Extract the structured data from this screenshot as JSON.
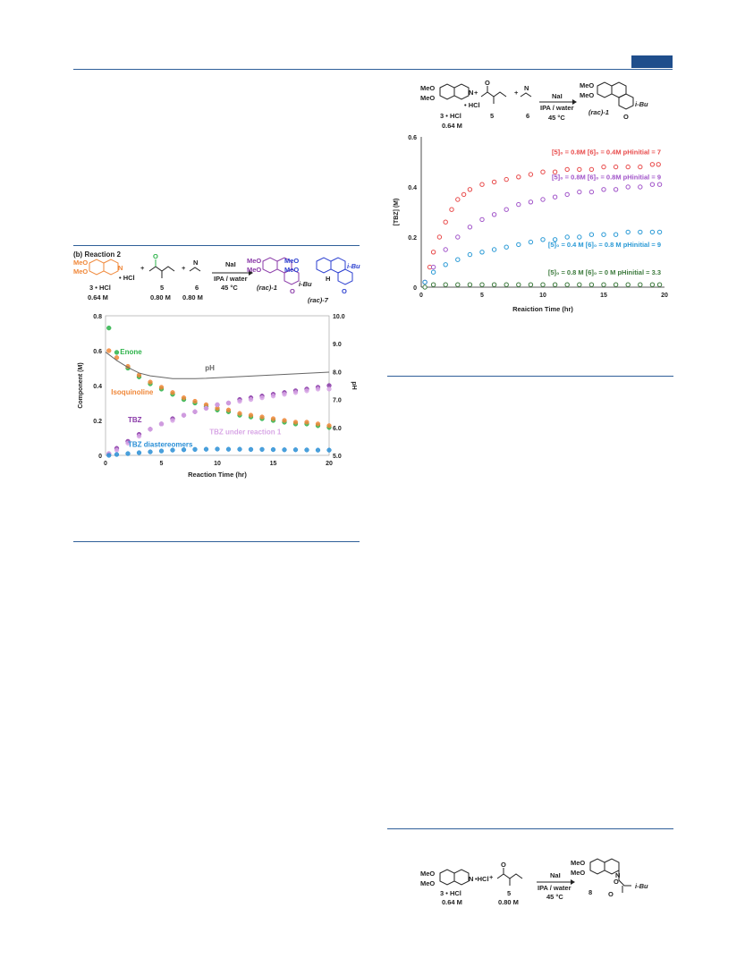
{
  "header": {
    "accent_color": "#1f4e8c"
  },
  "left_figure": {
    "title": "(b) Reaction 2",
    "scheme": {
      "reactant1_label": "3 • HCl",
      "reactant1_conc": "0.64 M",
      "hcl": "• HCl",
      "reactant2_label": "5",
      "reactant2_conc": "0.80 M",
      "reactant3_label": "6",
      "reactant3_conc": "0.80 M",
      "reagent": "NaI",
      "solvent": "IPA / water",
      "temp": "45 °C",
      "product1": "(rac)-1",
      "product2": "(rac)-7",
      "meo": "MeO",
      "ibu": "i-Bu",
      "h": "H",
      "o": "O",
      "n": "N"
    }
  },
  "chart_data": [
    {
      "type": "scatter",
      "xlabel": "Reaction Time (hr)",
      "ylabel": "Component (M)",
      "y2label": "pH",
      "xlim": [
        0,
        20
      ],
      "ylim": [
        0,
        0.8
      ],
      "y2lim": [
        5.0,
        10.0
      ],
      "xticks": [
        "0",
        "5",
        "10",
        "15",
        "20"
      ],
      "yticks": [
        "0",
        "0.2",
        "0.4",
        "0.6",
        "0.8"
      ],
      "y2ticks": [
        "5.0",
        "6.0",
        "7.0",
        "8.0",
        "9.0",
        "10.0"
      ],
      "series": [
        {
          "name": "Enone",
          "color": "#2db34a",
          "x": [
            0.3,
            1,
            2,
            3,
            4,
            5,
            6,
            7,
            8,
            9,
            10,
            11,
            12,
            13,
            14,
            15,
            16,
            17,
            18,
            19,
            20
          ],
          "y": [
            0.73,
            0.59,
            0.5,
            0.45,
            0.41,
            0.38,
            0.35,
            0.32,
            0.3,
            0.28,
            0.26,
            0.25,
            0.23,
            0.22,
            0.21,
            0.2,
            0.19,
            0.18,
            0.18,
            0.17,
            0.16
          ]
        },
        {
          "name": "Isoquinoline",
          "color": "#f0883a",
          "x": [
            0.3,
            1,
            2,
            3,
            4,
            5,
            6,
            7,
            8,
            9,
            10,
            11,
            12,
            13,
            14,
            15,
            16,
            17,
            18,
            19,
            20
          ],
          "y": [
            0.6,
            0.56,
            0.51,
            0.46,
            0.42,
            0.39,
            0.36,
            0.33,
            0.31,
            0.29,
            0.27,
            0.26,
            0.24,
            0.23,
            0.22,
            0.21,
            0.2,
            0.19,
            0.19,
            0.18,
            0.17
          ]
        },
        {
          "name": "TBZ",
          "color": "#8a3aa8",
          "x": [
            0.3,
            1,
            2,
            3,
            4,
            5,
            6,
            7,
            8,
            9,
            10,
            11,
            12,
            13,
            14,
            15,
            16,
            17,
            18,
            19,
            20
          ],
          "y": [
            0.01,
            0.04,
            0.08,
            0.12,
            0.15,
            0.18,
            0.21,
            0.23,
            0.25,
            0.27,
            0.29,
            0.3,
            0.32,
            0.33,
            0.34,
            0.35,
            0.36,
            0.37,
            0.38,
            0.39,
            0.4
          ]
        },
        {
          "name": "TBZ under reaction 1",
          "color": "#d8a7e6",
          "x": [
            0.3,
            1,
            2,
            3,
            4,
            5,
            6,
            7,
            8,
            9,
            10,
            11,
            12,
            13,
            14,
            15,
            16,
            17,
            18,
            19,
            20
          ],
          "y": [
            0.01,
            0.03,
            0.07,
            0.11,
            0.15,
            0.18,
            0.2,
            0.23,
            0.25,
            0.27,
            0.29,
            0.3,
            0.31,
            0.32,
            0.33,
            0.34,
            0.35,
            0.36,
            0.37,
            0.38,
            0.38
          ]
        },
        {
          "name": "TBZ diastereomers",
          "color": "#2a8fd6",
          "x": [
            0.3,
            1,
            2,
            3,
            4,
            5,
            6,
            7,
            8,
            9,
            10,
            11,
            12,
            13,
            14,
            15,
            16,
            17,
            18,
            19,
            20
          ],
          "y": [
            0.0,
            0.005,
            0.01,
            0.015,
            0.02,
            0.025,
            0.03,
            0.032,
            0.034,
            0.035,
            0.036,
            0.035,
            0.035,
            0.034,
            0.034,
            0.033,
            0.032,
            0.032,
            0.031,
            0.03,
            0.03
          ]
        },
        {
          "name": "pH",
          "color": "#666666",
          "axis": "y2",
          "x": [
            0,
            1,
            2,
            3,
            4,
            5,
            6,
            7,
            8,
            9,
            10,
            11,
            12,
            13,
            14,
            15,
            16,
            17,
            18,
            19,
            20
          ],
          "y": [
            8.7,
            8.4,
            8.15,
            7.95,
            7.85,
            7.8,
            7.75,
            7.75,
            7.75,
            7.76,
            7.78,
            7.8,
            7.82,
            7.84,
            7.86,
            7.88,
            7.9,
            7.92,
            7.94,
            7.96,
            7.98
          ]
        }
      ],
      "annotations": [
        "Enone",
        "pH",
        "Isoquinoline",
        "TBZ",
        "TBZ under reaction 1",
        "TBZ diastereomers"
      ]
    },
    {
      "type": "scatter",
      "xlabel": "Reaiction Time (hr)",
      "ylabel": "[TBZ] (M)",
      "xlim": [
        0,
        20
      ],
      "ylim": [
        0,
        0.6
      ],
      "xticks": [
        "0",
        "5",
        "10",
        "15",
        "20"
      ],
      "yticks": [
        "0",
        "0.2",
        "0.4",
        "0.6"
      ],
      "series": [
        {
          "color": "#e84a4a",
          "x": [
            0.3,
            0.7,
            1,
            1.5,
            2,
            2.5,
            3,
            3.5,
            4,
            5,
            6,
            7,
            8,
            9,
            10,
            11,
            12,
            13,
            14,
            15,
            16,
            17,
            18,
            19,
            19.5
          ],
          "y": [
            0.02,
            0.08,
            0.14,
            0.2,
            0.26,
            0.31,
            0.35,
            0.37,
            0.39,
            0.41,
            0.42,
            0.43,
            0.44,
            0.45,
            0.46,
            0.46,
            0.47,
            0.47,
            0.47,
            0.48,
            0.48,
            0.48,
            0.48,
            0.49,
            0.49
          ]
        },
        {
          "color": "#a154c9",
          "x": [
            0.3,
            1,
            2,
            3,
            4,
            5,
            6,
            7,
            8,
            9,
            10,
            11,
            12,
            13,
            14,
            15,
            16,
            17,
            18,
            19,
            19.6
          ],
          "y": [
            0.02,
            0.08,
            0.15,
            0.2,
            0.24,
            0.27,
            0.29,
            0.31,
            0.33,
            0.34,
            0.35,
            0.36,
            0.37,
            0.38,
            0.38,
            0.39,
            0.39,
            0.4,
            0.4,
            0.41,
            0.41
          ]
        },
        {
          "color": "#2a9ad6",
          "x": [
            0.3,
            1,
            2,
            3,
            4,
            5,
            6,
            7,
            8,
            9,
            10,
            11,
            12,
            13,
            14,
            15,
            16,
            17,
            18,
            19,
            19.6
          ],
          "y": [
            0.02,
            0.06,
            0.09,
            0.11,
            0.13,
            0.14,
            0.15,
            0.16,
            0.17,
            0.18,
            0.19,
            0.19,
            0.2,
            0.2,
            0.21,
            0.21,
            0.21,
            0.22,
            0.22,
            0.22,
            0.22
          ]
        },
        {
          "color": "#3c7a3c",
          "x": [
            0.3,
            1,
            2,
            3,
            4,
            5,
            6,
            7,
            8,
            9,
            10,
            11,
            12,
            13,
            14,
            15,
            16,
            17,
            18,
            19,
            19.6
          ],
          "y": [
            0.0,
            0.01,
            0.01,
            0.01,
            0.01,
            0.01,
            0.01,
            0.01,
            0.01,
            0.01,
            0.01,
            0.01,
            0.01,
            0.01,
            0.01,
            0.01,
            0.01,
            0.01,
            0.01,
            0.01,
            0.01
          ]
        }
      ],
      "annotations": [
        {
          "text": "[5]₀ = 0.8M [6]₀ = 0.4M pHinitial = 7",
          "color": "#e84a4a"
        },
        {
          "text": "[5]₀ = 0.8M [6]₀ = 0.8M pHinitial = 9",
          "color": "#a154c9"
        },
        {
          "text": "[5]₀ = 0.4 M [6]₀ = 0.8 M pHinitial = 9",
          "color": "#2a9ad6"
        },
        {
          "text": "[5]₀ = 0.8 M [6]₀ = 0 M pHinitial = 3.3",
          "color": "#3c7a3c"
        }
      ]
    }
  ],
  "right_scheme": {
    "reactant1_label": "3 • HCl",
    "reactant1_conc": "0.64 M",
    "reactant2_label": "5",
    "reactant3_label": "6",
    "reagent": "NaI",
    "solvent": "IPA / water",
    "temp": "45 °C",
    "product": "(rac)-1",
    "meo": "MeO",
    "ibu": "i-Bu",
    "o": "O",
    "n": "N",
    "hcl": "• HCl"
  },
  "bottom_scheme": {
    "reactant1_label": "3 • HCl",
    "reactant1_conc": "0.64 M",
    "reactant2_label": "5",
    "reactant2_conc": "0.80 M",
    "reagent": "NaI",
    "solvent": "IPA / water",
    "temp": "45 °C",
    "product": "8",
    "meo": "MeO",
    "ibu": "i-Bu",
    "o": "O",
    "n": "N",
    "hcl": "•HCl"
  }
}
